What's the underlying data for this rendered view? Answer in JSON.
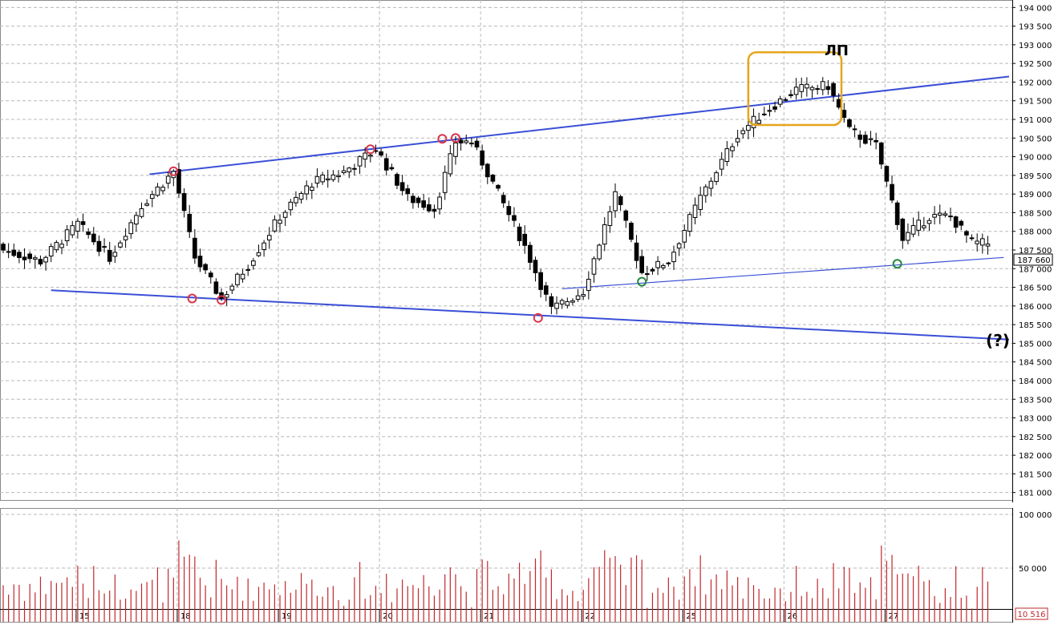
{
  "chart_data": [
    {
      "type": "candlestick",
      "title": "",
      "annotations": [
        {
          "text": "ЛП",
          "kind": "box-label"
        },
        {
          "text": "(?)",
          "kind": "label"
        }
      ],
      "y_axis": {
        "ylim": [
          180800,
          194200
        ],
        "ticks": [
          {
            "value": 194000,
            "label": "194 000"
          },
          {
            "value": 193500,
            "label": "193 500"
          },
          {
            "value": 193000,
            "label": "193 000"
          },
          {
            "value": 192500,
            "label": "192 500"
          },
          {
            "value": 192000,
            "label": "192 000"
          },
          {
            "value": 191500,
            "label": "191 500"
          },
          {
            "value": 191000,
            "label": "191 000"
          },
          {
            "value": 190500,
            "label": "190 500"
          },
          {
            "value": 190000,
            "label": "190 000"
          },
          {
            "value": 189500,
            "label": "189 500"
          },
          {
            "value": 189000,
            "label": "189 000"
          },
          {
            "value": 188500,
            "label": "188 500"
          },
          {
            "value": 188000,
            "label": "188 000"
          },
          {
            "value": 187500,
            "label": "187 500"
          },
          {
            "value": 187000,
            "label": "187 000"
          },
          {
            "value": 186500,
            "label": "186 500"
          },
          {
            "value": 186000,
            "label": "186 000"
          },
          {
            "value": 185500,
            "label": "185 500"
          },
          {
            "value": 185000,
            "label": "185 000"
          },
          {
            "value": 184500,
            "label": "184 500"
          },
          {
            "value": 184000,
            "label": "184 000"
          },
          {
            "value": 183500,
            "label": "183 500"
          },
          {
            "value": 183000,
            "label": "183 000"
          },
          {
            "value": 182500,
            "label": "182 500"
          },
          {
            "value": 182000,
            "label": "182 000"
          },
          {
            "value": 181500,
            "label": "181 500"
          },
          {
            "value": 181000,
            "label": "181 000"
          }
        ],
        "last_price": {
          "value": 187660,
          "label": "187 660"
        }
      },
      "x_axis": {
        "xlim": [
          0,
          189
        ],
        "day_labels": [
          {
            "index": 14,
            "label": "15"
          },
          {
            "index": 33,
            "label": "18"
          },
          {
            "index": 52,
            "label": "19"
          },
          {
            "index": 71,
            "label": "20"
          },
          {
            "index": 90,
            "label": "21"
          },
          {
            "index": 109,
            "label": "22"
          },
          {
            "index": 128,
            "label": "25"
          },
          {
            "index": 147,
            "label": "26"
          },
          {
            "index": 166,
            "label": "27"
          }
        ]
      },
      "key_points": [
        {
          "x": 0,
          "close": 187500
        },
        {
          "x": 7,
          "close": 187200
        },
        {
          "x": 14,
          "close": 188200
        },
        {
          "x": 20,
          "close": 187300
        },
        {
          "x": 26,
          "close": 188700
        },
        {
          "x": 32,
          "close": 189600
        },
        {
          "x": 36,
          "close": 187300
        },
        {
          "x": 41,
          "close": 186200
        },
        {
          "x": 46,
          "close": 187100
        },
        {
          "x": 52,
          "close": 188400
        },
        {
          "x": 58,
          "close": 189300
        },
        {
          "x": 64,
          "close": 189600
        },
        {
          "x": 70,
          "close": 190200
        },
        {
          "x": 76,
          "close": 188900
        },
        {
          "x": 81,
          "close": 188600
        },
        {
          "x": 85,
          "close": 190400
        },
        {
          "x": 88,
          "close": 190400
        },
        {
          "x": 92,
          "close": 189300
        },
        {
          "x": 98,
          "close": 187600
        },
        {
          "x": 103,
          "close": 185900
        },
        {
          "x": 109,
          "close": 186400
        },
        {
          "x": 115,
          "close": 189000
        },
        {
          "x": 120,
          "close": 186900
        },
        {
          "x": 125,
          "close": 187200
        },
        {
          "x": 131,
          "close": 188900
        },
        {
          "x": 138,
          "close": 190600
        },
        {
          "x": 143,
          "close": 191200
        },
        {
          "x": 149,
          "close": 191800
        },
        {
          "x": 155,
          "close": 191900
        },
        {
          "x": 159,
          "close": 190700
        },
        {
          "x": 164,
          "close": 190300
        },
        {
          "x": 169,
          "close": 187800
        },
        {
          "x": 174,
          "close": 188400
        },
        {
          "x": 178,
          "close": 188400
        },
        {
          "x": 182,
          "close": 187700
        },
        {
          "x": 185,
          "close": 187660
        }
      ],
      "trendlines": [
        {
          "name": "upper",
          "color": "#3a4fd6",
          "from": {
            "x": 27.5,
            "y": 189530
          },
          "to": {
            "x": 189,
            "y": 192150
          }
        },
        {
          "name": "lower",
          "color": "#3a4fd6",
          "from": {
            "x": 9,
            "y": 186420
          },
          "to": {
            "x": 189,
            "y": 185100
          }
        },
        {
          "name": "support",
          "color": "#3a4fd6",
          "from": {
            "x": 105,
            "y": 186460
          },
          "to": {
            "x": 188,
            "y": 187300
          }
        }
      ],
      "markers": [
        {
          "x": 32,
          "y": 189610,
          "color": "#d9344a"
        },
        {
          "x": 35.5,
          "y": 186200,
          "color": "#d9344a"
        },
        {
          "x": 41,
          "y": 186160,
          "color": "#d9344a"
        },
        {
          "x": 69,
          "y": 190200,
          "color": "#d9344a"
        },
        {
          "x": 82.5,
          "y": 190480,
          "color": "#d9344a"
        },
        {
          "x": 85,
          "y": 190500,
          "color": "#d9344a"
        },
        {
          "x": 100.5,
          "y": 185680,
          "color": "#d9344a"
        },
        {
          "x": 120,
          "y": 186650,
          "color": "#1f8a3c"
        },
        {
          "x": 168,
          "y": 187130,
          "color": "#1f8a3c"
        }
      ],
      "highlight_box": {
        "x0": 140,
        "x1": 157.5,
        "y0": 190850,
        "y1": 192800,
        "color": "#e5a51c"
      }
    },
    {
      "type": "bar",
      "name": "volume",
      "color": "#c0282d",
      "ylim": [
        0,
        100000
      ],
      "ticks": [
        {
          "value": 100000,
          "label": "100 000"
        },
        {
          "value": 50000,
          "label": "50 000"
        }
      ],
      "last_volume": {
        "value": 10516,
        "label": "10 516"
      }
    }
  ]
}
